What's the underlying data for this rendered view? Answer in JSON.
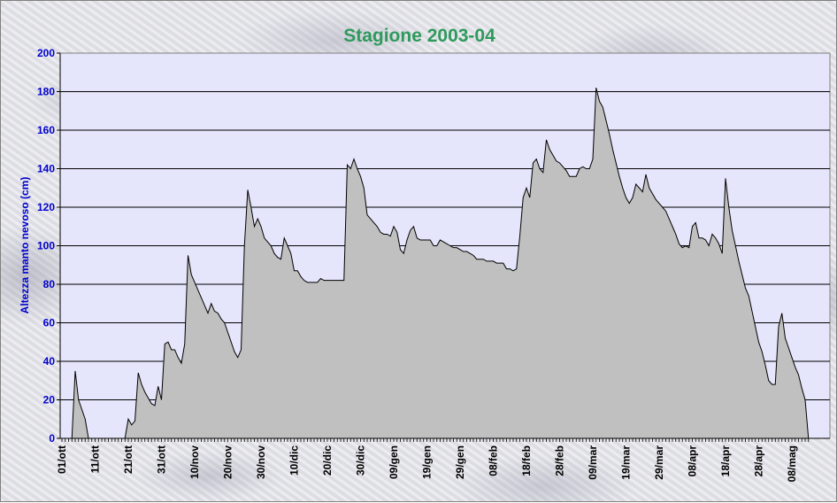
{
  "chart_data": {
    "type": "area",
    "title": "Stagione 2003-04",
    "xlabel": "",
    "ylabel": "Altezza manto nevoso (cm)",
    "ylim": [
      0,
      200
    ],
    "yticks": [
      0,
      20,
      40,
      60,
      80,
      100,
      120,
      140,
      160,
      180,
      200
    ],
    "grid": true,
    "legend": "none",
    "x_tick_labels": [
      "01/ott",
      "11/ott",
      "21/ott",
      "31/ott",
      "10/nov",
      "20/nov",
      "30/nov",
      "10/dic",
      "20/dic",
      "30/dic",
      "09/gen",
      "19/gen",
      "29/gen",
      "08/feb",
      "18/feb",
      "28/feb",
      "09/mar",
      "19/mar",
      "29/mar",
      "08/apr",
      "18/apr",
      "28/apr",
      "08/mag"
    ],
    "x_start": "01/ott",
    "x_end": "23/mag",
    "series": [
      {
        "values": [
          0,
          0,
          0,
          0,
          35,
          20,
          15,
          10,
          0,
          0,
          0,
          0,
          0,
          0,
          0,
          0,
          0,
          0,
          0,
          0,
          10,
          7,
          9,
          34,
          28,
          24,
          21,
          18,
          17,
          27,
          20,
          49,
          50,
          46,
          46,
          42,
          39,
          49,
          95,
          85,
          81,
          77,
          73,
          69,
          65,
          70,
          66,
          65,
          62,
          60,
          55,
          50,
          45,
          42,
          46,
          100,
          129,
          120,
          110,
          114,
          110,
          104,
          102,
          100,
          96,
          94,
          93,
          104,
          100,
          96,
          87,
          87,
          84,
          82,
          81,
          81,
          81,
          81,
          83,
          82,
          82,
          82,
          82,
          82,
          82,
          82,
          142,
          140,
          145,
          140,
          136,
          130,
          116,
          114,
          112,
          110,
          107,
          106,
          106,
          105,
          110,
          107,
          98,
          96,
          103,
          108,
          110,
          104,
          103,
          103,
          103,
          103,
          100,
          100,
          103,
          102,
          101,
          100,
          99,
          99,
          98,
          97,
          97,
          96,
          95,
          93,
          93,
          93,
          92,
          92,
          92,
          91,
          91,
          91,
          88,
          88,
          87,
          88,
          105,
          125,
          130,
          125,
          143,
          145,
          140,
          138,
          155,
          150,
          147,
          144,
          143,
          141,
          139,
          136,
          136,
          136,
          140,
          141,
          140,
          140,
          145,
          182,
          175,
          172,
          165,
          158,
          150,
          143,
          136,
          130,
          125,
          122,
          125,
          132,
          130,
          128,
          137,
          130,
          127,
          124,
          122,
          120,
          118,
          114,
          110,
          106,
          101,
          99,
          100,
          99,
          110,
          112,
          104,
          104,
          103,
          100,
          106,
          104,
          101,
          96,
          135,
          120,
          108,
          100,
          92,
          85,
          78,
          74,
          66,
          58,
          50,
          45,
          38,
          30,
          28,
          28,
          58,
          65,
          52,
          47,
          42,
          37,
          33,
          26,
          20,
          0
        ]
      }
    ]
  }
}
